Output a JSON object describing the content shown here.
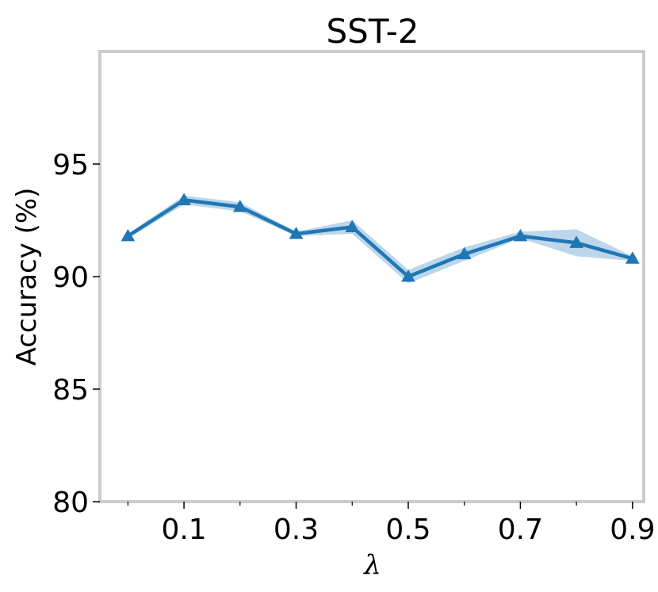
{
  "chart_data": {
    "type": "line",
    "title": "SST-2",
    "xlabel": "λ",
    "ylabel": "Accuracy (%)",
    "xlim": [
      -0.05,
      0.92
    ],
    "ylim": [
      80,
      100
    ],
    "xticks_major": [
      0.1,
      0.3,
      0.5,
      0.7,
      0.9
    ],
    "xtick_labels": [
      "0.1",
      "0.3",
      "0.5",
      "0.7",
      "0.9"
    ],
    "xticks_minor": [
      0.0,
      0.2,
      0.4,
      0.6,
      0.8
    ],
    "yticks": [
      80,
      85,
      90,
      95
    ],
    "ytick_labels": [
      "80",
      "85",
      "90",
      "95"
    ],
    "grid": false,
    "series": [
      {
        "marker": "triangle",
        "color": "#1f77b4",
        "band_color": "#a6c8e4",
        "x": [
          0.0,
          0.1,
          0.2,
          0.3,
          0.4,
          0.5,
          0.6,
          0.7,
          0.8,
          0.9
        ],
        "y": [
          91.8,
          93.4,
          93.1,
          91.9,
          92.2,
          90.0,
          91.0,
          91.8,
          91.5,
          90.8
        ],
        "y_lower": [
          91.7,
          93.2,
          92.9,
          91.8,
          91.9,
          89.7,
          90.7,
          91.7,
          90.9,
          90.7
        ],
        "y_upper": [
          91.9,
          93.6,
          93.3,
          92.0,
          92.5,
          90.3,
          91.3,
          92.0,
          92.1,
          90.9
        ]
      }
    ]
  }
}
